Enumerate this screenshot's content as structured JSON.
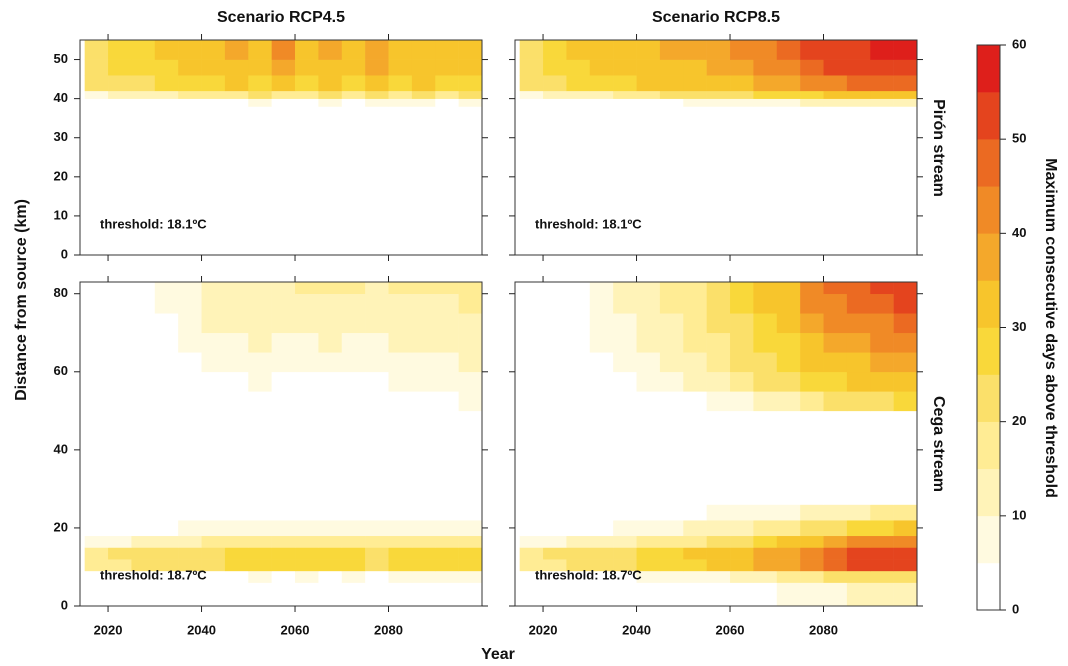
{
  "chart_data": {
    "type": "heatmap",
    "titles": [
      "Scenario RCP4.5",
      "Scenario RCP8.5"
    ],
    "row_labels": [
      "Pirón stream",
      "Cega stream"
    ],
    "xlabel": "Year",
    "ylabel": "Distance from source (km)",
    "xlim": [
      2014,
      2100
    ],
    "xticks": [
      2020,
      2040,
      2060,
      2080
    ],
    "xbins": [
      2015,
      2020,
      2025,
      2030,
      2035,
      2040,
      2045,
      2050,
      2055,
      2060,
      2065,
      2070,
      2075,
      2080,
      2085,
      2090,
      2095,
      2100
    ],
    "colorbar": {
      "label": "Maximum consecutive days above threshold",
      "lim": [
        0,
        60
      ],
      "ticks": [
        0,
        10,
        20,
        30,
        40,
        50,
        60
      ],
      "bins": [
        0,
        5,
        10,
        15,
        20,
        25,
        30,
        35,
        40,
        45,
        50,
        55,
        60
      ],
      "colors": [
        "#ffffff",
        "#fffae0",
        "#fff3b8",
        "#ffec94",
        "#fbe06a",
        "#f9d83a",
        "#f7c52c",
        "#f4a82b",
        "#f08a26",
        "#eb6a22",
        "#e4441e",
        "#de1f1b"
      ]
    },
    "panels": [
      {
        "annotation": "threshold: 18.1ºC",
        "ylim": [
          0,
          55
        ],
        "yticks": [
          0,
          10,
          20,
          30,
          40,
          50
        ],
        "ybins": [
          0,
          38,
          40,
          42,
          46,
          50,
          55
        ],
        "values": [
          [
            0,
            0,
            0,
            0,
            0,
            0,
            0,
            0,
            0,
            0,
            0,
            0,
            0,
            0,
            0,
            0,
            0
          ],
          [
            0,
            0,
            0,
            0,
            0,
            0,
            3,
            6,
            3,
            0,
            6,
            3,
            6,
            6,
            6,
            3,
            6
          ],
          [
            8,
            12,
            12,
            14,
            18,
            16,
            18,
            20,
            18,
            16,
            20,
            18,
            20,
            18,
            20,
            18,
            20
          ],
          [
            22,
            24,
            24,
            26,
            28,
            26,
            30,
            28,
            32,
            28,
            30,
            26,
            30,
            28,
            30,
            28,
            28
          ],
          [
            24,
            26,
            28,
            28,
            32,
            30,
            34,
            32,
            38,
            30,
            34,
            30,
            36,
            32,
            32,
            32,
            30
          ],
          [
            24,
            28,
            28,
            30,
            34,
            32,
            36,
            34,
            40,
            32,
            36,
            30,
            38,
            34,
            34,
            34,
            32
          ]
        ]
      },
      {
        "annotation": "threshold: 18.1ºC",
        "ylim": [
          0,
          55
        ],
        "yticks": [
          0,
          10,
          20,
          30,
          40,
          50
        ],
        "ybins": [
          0,
          38,
          40,
          42,
          46,
          50,
          55
        ],
        "values": [
          [
            0,
            0,
            0,
            0,
            0,
            0,
            0,
            0,
            0,
            0,
            0,
            0,
            0,
            0,
            0,
            0,
            0
          ],
          [
            0,
            0,
            0,
            0,
            0,
            3,
            3,
            6,
            6,
            6,
            8,
            8,
            10,
            12,
            12,
            14,
            14
          ],
          [
            8,
            12,
            14,
            14,
            16,
            18,
            20,
            20,
            22,
            24,
            26,
            26,
            28,
            30,
            32,
            34,
            34
          ],
          [
            22,
            24,
            26,
            26,
            28,
            30,
            32,
            30,
            34,
            34,
            38,
            38,
            42,
            44,
            46,
            48,
            48
          ],
          [
            24,
            26,
            28,
            30,
            30,
            32,
            34,
            34,
            36,
            38,
            40,
            44,
            48,
            50,
            52,
            54,
            54
          ],
          [
            24,
            28,
            30,
            30,
            32,
            34,
            36,
            36,
            38,
            40,
            42,
            46,
            50,
            52,
            54,
            56,
            56
          ]
        ]
      },
      {
        "annotation": "threshold: 18.7ºC",
        "ylim": [
          0,
          83
        ],
        "yticks": [
          0,
          20,
          40,
          60,
          80
        ],
        "ybins": [
          0,
          6,
          9,
          12,
          15,
          18,
          22,
          26,
          50,
          55,
          60,
          65,
          70,
          75,
          80,
          83
        ],
        "values": [
          [
            0,
            0,
            0,
            0,
            0,
            0,
            0,
            0,
            0,
            0,
            0,
            0,
            0,
            0,
            0,
            0,
            0
          ],
          [
            0,
            0,
            0,
            0,
            3,
            3,
            3,
            6,
            3,
            6,
            3,
            6,
            3,
            6,
            6,
            6,
            6
          ],
          [
            18,
            18,
            20,
            22,
            24,
            24,
            26,
            26,
            26,
            28,
            26,
            28,
            24,
            26,
            26,
            26,
            26
          ],
          [
            18,
            20,
            20,
            22,
            24,
            24,
            26,
            26,
            26,
            28,
            26,
            28,
            24,
            26,
            26,
            26,
            26
          ],
          [
            6,
            8,
            10,
            12,
            14,
            16,
            18,
            16,
            18,
            18,
            16,
            18,
            16,
            18,
            16,
            18,
            18
          ],
          [
            3,
            3,
            0,
            3,
            6,
            6,
            8,
            8,
            8,
            8,
            6,
            8,
            6,
            8,
            8,
            8,
            8
          ],
          [
            0,
            0,
            0,
            0,
            0,
            0,
            0,
            3,
            0,
            0,
            0,
            0,
            0,
            0,
            0,
            3,
            0
          ],
          [
            0,
            0,
            0,
            0,
            0,
            0,
            0,
            0,
            0,
            0,
            0,
            0,
            0,
            0,
            0,
            0,
            0
          ],
          [
            0,
            0,
            0,
            0,
            0,
            0,
            0,
            0,
            0,
            0,
            0,
            0,
            0,
            0,
            0,
            3,
            6
          ],
          [
            0,
            0,
            0,
            0,
            0,
            3,
            3,
            6,
            3,
            3,
            3,
            3,
            3,
            6,
            6,
            6,
            8
          ],
          [
            0,
            0,
            0,
            0,
            3,
            6,
            6,
            8,
            6,
            6,
            6,
            6,
            6,
            8,
            8,
            8,
            10
          ],
          [
            3,
            0,
            0,
            3,
            6,
            8,
            8,
            10,
            8,
            8,
            10,
            8,
            8,
            10,
            10,
            10,
            12
          ],
          [
            3,
            0,
            3,
            3,
            8,
            10,
            10,
            12,
            10,
            12,
            12,
            10,
            10,
            12,
            12,
            12,
            14
          ],
          [
            3,
            3,
            3,
            6,
            8,
            12,
            12,
            14,
            12,
            14,
            14,
            14,
            12,
            14,
            14,
            14,
            16
          ],
          [
            3,
            3,
            3,
            6,
            8,
            12,
            12,
            14,
            14,
            16,
            18,
            16,
            14,
            16,
            16,
            16,
            16
          ]
        ]
      },
      {
        "annotation": "threshold: 18.7ºC",
        "ylim": [
          0,
          83
        ],
        "yticks": [
          0,
          20,
          40,
          60,
          80
        ],
        "ybins": [
          0,
          6,
          9,
          12,
          15,
          18,
          22,
          26,
          50,
          55,
          60,
          65,
          70,
          75,
          80,
          83
        ],
        "values": [
          [
            0,
            0,
            0,
            0,
            0,
            0,
            0,
            0,
            0,
            0,
            3,
            6,
            6,
            8,
            10,
            12,
            12
          ],
          [
            0,
            0,
            0,
            3,
            3,
            6,
            6,
            8,
            8,
            10,
            14,
            16,
            18,
            20,
            22,
            24,
            24
          ],
          [
            18,
            18,
            20,
            22,
            24,
            26,
            28,
            28,
            30,
            32,
            36,
            38,
            42,
            46,
            50,
            52,
            54
          ],
          [
            18,
            20,
            20,
            22,
            24,
            26,
            28,
            30,
            30,
            32,
            36,
            38,
            42,
            46,
            50,
            52,
            52
          ],
          [
            6,
            8,
            10,
            12,
            14,
            16,
            18,
            18,
            20,
            22,
            26,
            30,
            34,
            36,
            40,
            42,
            44
          ],
          [
            3,
            3,
            3,
            3,
            6,
            8,
            8,
            10,
            10,
            12,
            16,
            18,
            22,
            24,
            26,
            28,
            30
          ],
          [
            0,
            0,
            0,
            0,
            0,
            3,
            3,
            3,
            6,
            6,
            6,
            8,
            10,
            12,
            14,
            16,
            18
          ],
          [
            0,
            0,
            0,
            0,
            0,
            0,
            0,
            0,
            0,
            0,
            0,
            0,
            0,
            0,
            0,
            0,
            0
          ],
          [
            0,
            0,
            0,
            0,
            0,
            0,
            0,
            3,
            6,
            8,
            10,
            14,
            18,
            20,
            22,
            24,
            26
          ],
          [
            0,
            0,
            0,
            0,
            3,
            6,
            8,
            10,
            12,
            16,
            20,
            24,
            26,
            28,
            30,
            32,
            34
          ],
          [
            0,
            0,
            0,
            3,
            6,
            8,
            10,
            14,
            16,
            20,
            24,
            26,
            30,
            32,
            34,
            36,
            38
          ],
          [
            0,
            0,
            3,
            6,
            8,
            10,
            12,
            16,
            18,
            22,
            26,
            28,
            32,
            36,
            38,
            40,
            42
          ],
          [
            0,
            0,
            3,
            6,
            8,
            12,
            14,
            18,
            20,
            24,
            28,
            32,
            36,
            40,
            42,
            44,
            46
          ],
          [
            0,
            3,
            3,
            6,
            10,
            12,
            16,
            18,
            22,
            26,
            30,
            34,
            40,
            44,
            46,
            48,
            50
          ],
          [
            0,
            3,
            3,
            6,
            10,
            12,
            16,
            18,
            22,
            26,
            30,
            34,
            42,
            46,
            48,
            50,
            52
          ]
        ]
      }
    ]
  }
}
